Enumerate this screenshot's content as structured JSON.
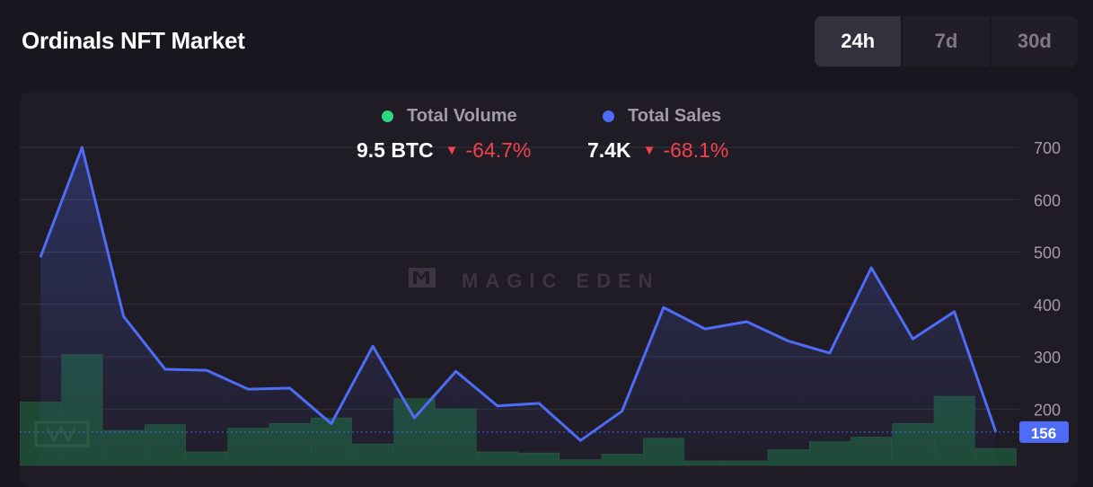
{
  "header": {
    "title": "Ordinals NFT Market"
  },
  "tabs": [
    {
      "label": "24h",
      "active": true
    },
    {
      "label": "7d",
      "active": false
    },
    {
      "label": "30d",
      "active": false
    }
  ],
  "legend": {
    "volume": {
      "label": "Total Volume",
      "value": "9.5 BTC",
      "change": "-64.7%",
      "color": "#2dd882"
    },
    "sales": {
      "label": "Total Sales",
      "value": "7.4K",
      "change": "-68.1%",
      "color": "#4e6cf5"
    }
  },
  "watermark": "MAGIC EDEN",
  "current_value_badge": "156",
  "colors": {
    "line": "#4e6cf5",
    "bar": "#1e4a35",
    "bar_highlight": "#2d7a55",
    "negative": "#f2424b"
  },
  "chart_data": {
    "type": "line",
    "title": "",
    "y_axis": {
      "ticks": [
        200,
        300,
        400,
        500,
        600,
        700
      ],
      "range": [
        100,
        700
      ],
      "position": "right"
    },
    "series": [
      {
        "name": "Total Sales",
        "type": "line",
        "values": [
          490,
          700,
          377,
          276,
          274,
          238,
          240,
          172,
          320,
          183,
          272,
          206,
          211,
          140,
          196,
          394,
          353,
          367,
          330,
          307,
          470,
          334,
          386,
          156
        ]
      },
      {
        "name": "Total Volume",
        "type": "bar",
        "values": [
          0.56,
          0.98,
          0.31,
          0.36,
          0.12,
          0.33,
          0.37,
          0.42,
          0.19,
          0.59,
          0.5,
          0.12,
          0.11,
          0.05,
          0.1,
          0.24,
          0.04,
          0.04,
          0.14,
          0.21,
          0.25,
          0.37,
          0.61,
          0.15
        ],
        "unit": "relative"
      }
    ],
    "grid": true,
    "reference_line": 156
  }
}
